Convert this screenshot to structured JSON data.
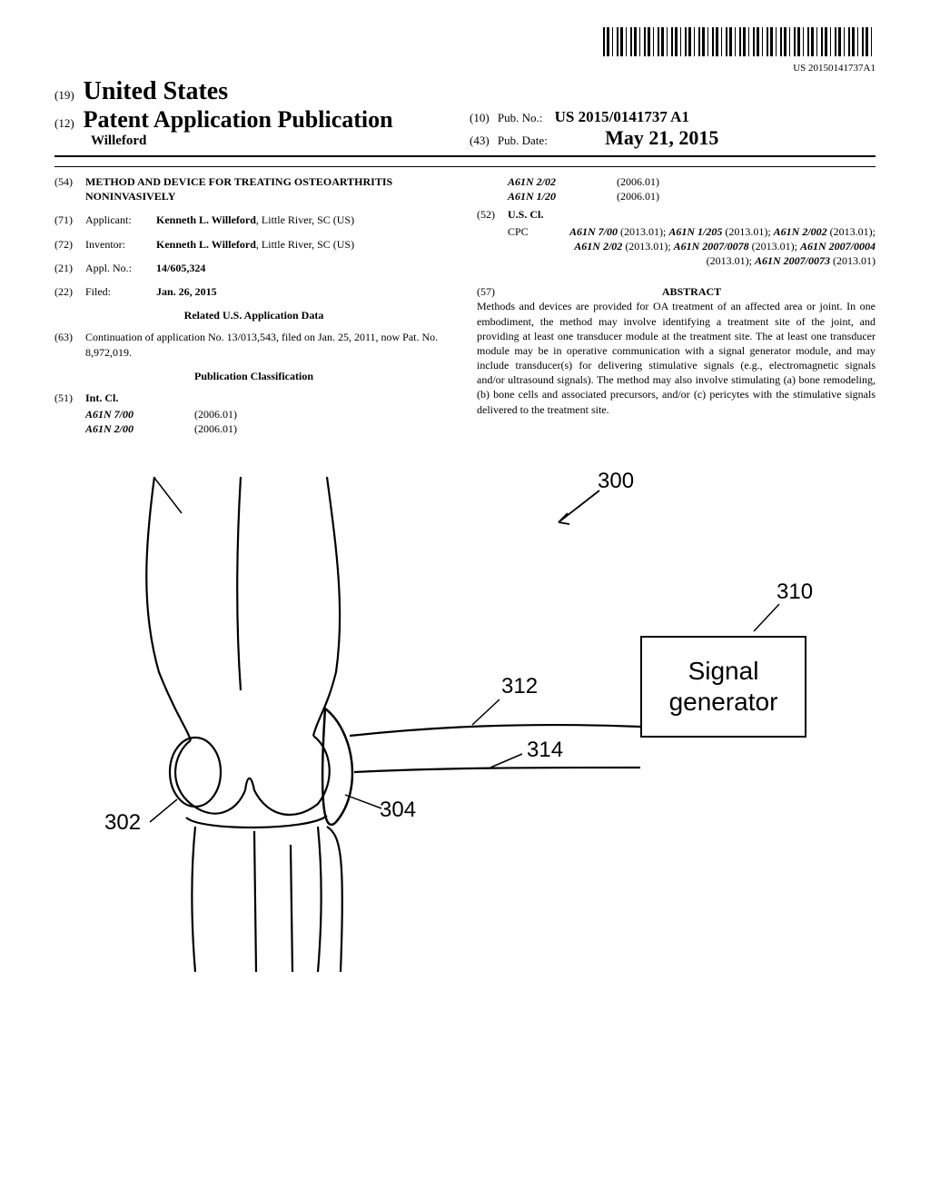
{
  "barcode_number": "US 20150141737A1",
  "header": {
    "code_19": "(19)",
    "country": "United States",
    "code_12": "(12)",
    "doc_type": "Patent Application Publication",
    "author": "Willeford",
    "code_10": "(10)",
    "pub_no_label": "Pub. No.:",
    "pub_no": "US 2015/0141737 A1",
    "code_43": "(43)",
    "pub_date_label": "Pub. Date:",
    "pub_date": "May 21, 2015"
  },
  "fields": {
    "f54": {
      "code": "(54)",
      "title": "METHOD AND DEVICE FOR TREATING OSTEOARTHRITIS NONINVASIVELY"
    },
    "f71": {
      "code": "(71)",
      "label": "Applicant:",
      "name": "Kenneth L. Willeford",
      "addr": ", Little River, SC (US)"
    },
    "f72": {
      "code": "(72)",
      "label": "Inventor:",
      "name": "Kenneth L. Willeford",
      "addr": ", Little River, SC (US)"
    },
    "f21": {
      "code": "(21)",
      "label": "Appl. No.:",
      "value": "14/605,324"
    },
    "f22": {
      "code": "(22)",
      "label": "Filed:",
      "value": "Jan. 26, 2015"
    },
    "related_title": "Related U.S. Application Data",
    "f63": {
      "code": "(63)",
      "text": "Continuation of application No. 13/013,543, filed on Jan. 25, 2011, now Pat. No. 8,972,019."
    },
    "pub_class_title": "Publication Classification",
    "f51": {
      "code": "(51)",
      "label": "Int. Cl.",
      "rows": [
        {
          "c": "A61N 7/00",
          "y": "(2006.01)"
        },
        {
          "c": "A61N 2/00",
          "y": "(2006.01)"
        },
        {
          "c": "A61N 2/02",
          "y": "(2006.01)"
        },
        {
          "c": "A61N 1/20",
          "y": "(2006.01)"
        }
      ]
    },
    "f52": {
      "code": "(52)",
      "label": "U.S. Cl.",
      "cpc_label": "CPC",
      "cpc_parts": [
        {
          "t": "A61N 7/00",
          "b": true
        },
        {
          "t": " (2013.01); ",
          "b": false
        },
        {
          "t": "A61N 1/205",
          "b": true
        },
        {
          "t": " (2013.01); ",
          "b": false
        },
        {
          "t": "A61N 2/002",
          "b": true
        },
        {
          "t": " (2013.01); ",
          "b": false
        },
        {
          "t": "A61N 2/02",
          "b": true
        },
        {
          "t": " (2013.01); ",
          "b": false
        },
        {
          "t": "A61N 2007/0078",
          "b": true
        },
        {
          "t": " (2013.01); ",
          "b": false
        },
        {
          "t": "A61N 2007/0004",
          "b": true
        },
        {
          "t": " (2013.01); ",
          "b": false
        },
        {
          "t": "A61N 2007/0073",
          "b": true
        },
        {
          "t": " (2013.01)",
          "b": false
        }
      ]
    }
  },
  "abstract": {
    "code": "(57)",
    "title": "ABSTRACT",
    "text": "Methods and devices are provided for OA treatment of an affected area or joint. In one embodiment, the method may involve identifying a treatment site of the joint, and providing at least one transducer module at the treatment site. The at least one transducer module may be in operative communication with a signal generator module, and may include transducer(s) for delivering stimulative signals (e.g., electromagnetic signals and/or ultrasound signals). The method may also involve stimulating (a) bone remodeling, (b) bone cells and associated precursors, and/or (c) pericytes with the stimulative signals delivered to the treatment site."
  },
  "figure": {
    "refs": {
      "r300": "300",
      "r310": "310",
      "r312": "312",
      "r314": "314",
      "r304": "304",
      "r302": "302"
    },
    "signal_box": "Signal generator",
    "colors": {
      "stroke": "#000000",
      "bg": "#ffffff"
    }
  }
}
